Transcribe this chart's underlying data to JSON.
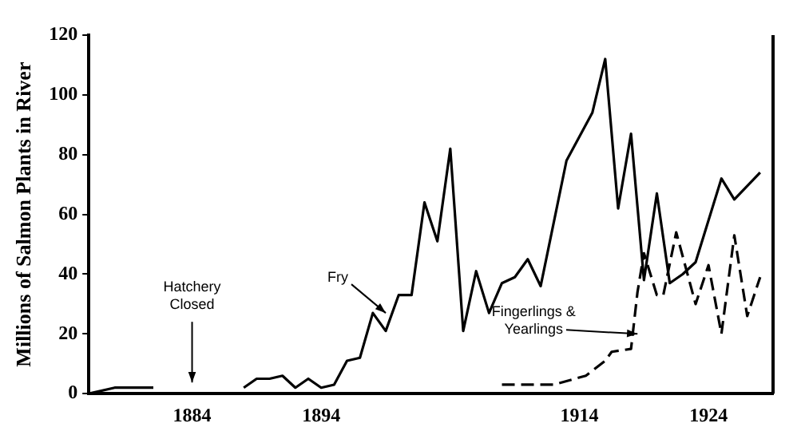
{
  "chart_data": {
    "type": "line",
    "ylabel": "Millions of Salmon Plants in River",
    "xlim": [
      1876,
      1929
    ],
    "xticks": [
      1884,
      1894,
      1914,
      1924
    ],
    "ylim": [
      0,
      120
    ],
    "yticks": [
      0,
      20,
      40,
      60,
      80,
      100,
      120
    ],
    "grid": false,
    "legend": false,
    "marker": "none",
    "series": [
      {
        "color": "#000000",
        "line_style": "solid",
        "x": [
          1876,
          1878,
          1881,
          1884,
          1888,
          1889,
          1890,
          1891,
          1892,
          1893,
          1894,
          1895,
          1896,
          1897,
          1898,
          1899,
          1900,
          1901,
          1902,
          1903,
          1904,
          1905,
          1906,
          1907,
          1908,
          1909,
          1910,
          1911,
          1913,
          1915,
          1916,
          1917,
          1918,
          1919,
          1920,
          1921,
          1922,
          1923,
          1925,
          1926,
          1928
        ],
        "values": [
          0,
          2,
          2,
          null,
          2,
          5,
          5,
          6,
          2,
          5,
          2,
          3,
          11,
          12,
          27,
          21,
          33,
          33,
          64,
          51,
          82,
          21,
          41,
          27,
          37,
          39,
          45,
          36,
          78,
          94,
          112,
          62,
          87,
          38,
          67,
          37,
          40,
          44,
          72,
          65,
          74
        ]
      },
      {
        "color": "#000000",
        "line_style": "dashed",
        "x": [
          1908,
          1912,
          1914.5,
          1916,
          1916.5,
          1918,
          1918.5,
          1919,
          1920,
          1920.5,
          1921.5,
          1922,
          1923,
          1924,
          1925,
          1926,
          1927,
          1928
        ],
        "values": [
          3,
          3,
          6,
          11,
          14,
          15,
          34,
          47,
          33,
          33,
          54,
          46,
          30,
          43,
          20,
          53,
          26,
          39
        ]
      }
    ],
    "annotations": [
      "Hatchery Closed",
      {
        "text": "Fry",
        "x": 1899,
        "y": 27
      },
      {
        "text": "Fingerlings & Yearlings",
        "x": 1918.5,
        "y": 20
      }
    ]
  }
}
